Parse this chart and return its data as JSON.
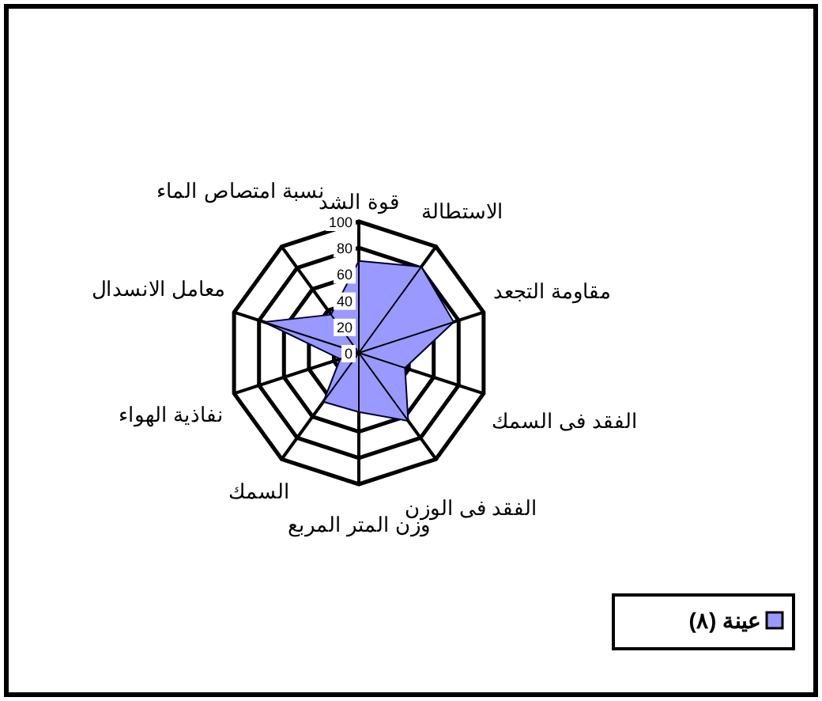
{
  "chart_data": {
    "type": "radar",
    "categories": [
      "قوة الشد",
      "الاستطالة",
      "مقاومة التجعد",
      "الفقد فى السمك",
      "الفقد فى الوزن",
      "وزن المتر المربع",
      "السمك",
      "نفاذية الهواء",
      "معامل الانسدال",
      "نسبة امتصاص الماء"
    ],
    "series": [
      {
        "name": "عينة (٨)",
        "color": "#9999ff",
        "values": [
          70,
          81,
          76,
          37,
          64,
          45,
          46,
          15,
          76,
          36
        ]
      }
    ],
    "ylim": [
      0,
      100
    ],
    "yticks": [
      0,
      20,
      40,
      60,
      80,
      100
    ],
    "grid": true,
    "legend": "bottom right"
  }
}
